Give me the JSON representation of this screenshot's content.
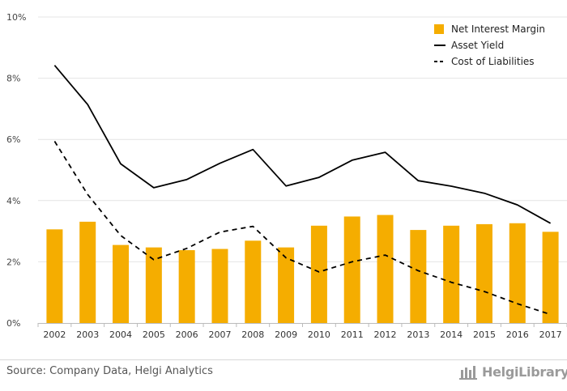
{
  "chart_data": {
    "type": "bar",
    "x": [
      "2002",
      "2003",
      "2004",
      "2005",
      "2006",
      "2007",
      "2008",
      "2009",
      "2010",
      "2011",
      "2012",
      "2013",
      "2014",
      "2015",
      "2016",
      "2017"
    ],
    "ylim": [
      0,
      10
    ],
    "yticks": [
      "0%",
      "2%",
      "4%",
      "6%",
      "8%",
      "10%"
    ],
    "yunit": "%",
    "grid": "horizontal",
    "legend_position": "top-right",
    "series": [
      {
        "name": "Net Interest Margin",
        "type": "bar",
        "color": "#f5ad00",
        "values": [
          3.06,
          3.31,
          2.55,
          2.47,
          2.38,
          2.42,
          2.69,
          2.47,
          3.18,
          3.48,
          3.53,
          3.04,
          3.18,
          3.23,
          3.26,
          2.98
        ]
      },
      {
        "name": "Asset Yield",
        "type": "line",
        "style": "solid",
        "color": "#000000",
        "values": [
          8.42,
          7.14,
          5.2,
          4.42,
          4.69,
          5.22,
          5.67,
          4.48,
          4.76,
          5.32,
          5.58,
          4.65,
          4.47,
          4.24,
          3.86,
          3.26
        ]
      },
      {
        "name": "Cost of Liabilities",
        "type": "line",
        "style": "dashed",
        "color": "#000000",
        "values": [
          5.94,
          4.2,
          2.86,
          2.07,
          2.44,
          2.97,
          3.16,
          2.13,
          1.67,
          2.0,
          2.22,
          1.71,
          1.33,
          1.03,
          0.63,
          0.28
        ]
      }
    ]
  },
  "footer": {
    "source": "Source: Company Data, Helgi Analytics",
    "brand": "HelgiLibrary"
  }
}
